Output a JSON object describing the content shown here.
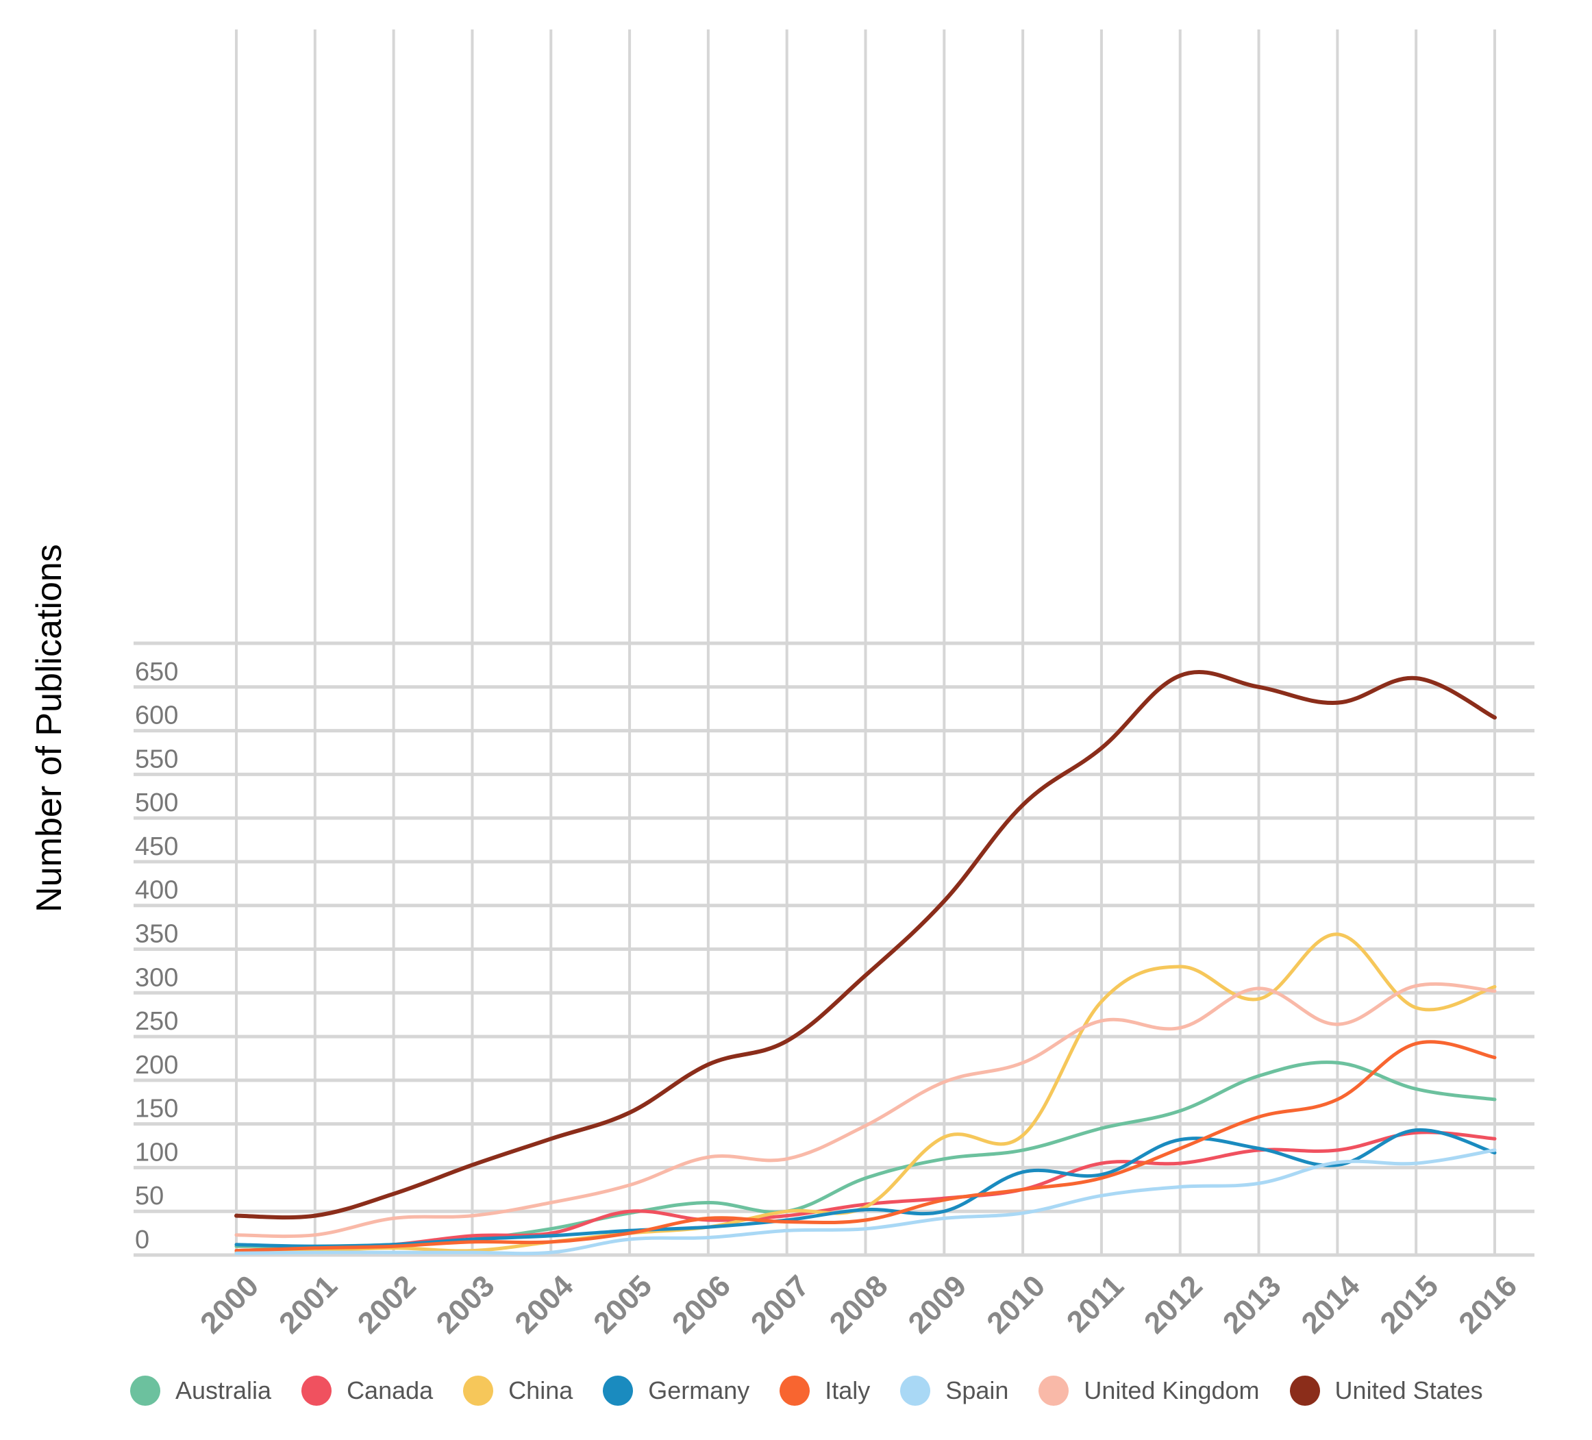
{
  "chart_data": {
    "type": "line",
    "title": "",
    "xlabel": "",
    "ylabel": "Number of Publications",
    "ylim": [
      0,
      700
    ],
    "y_ticks": [
      0,
      50,
      100,
      150,
      200,
      250,
      300,
      350,
      400,
      450,
      500,
      550,
      600,
      650
    ],
    "categories": [
      "2000",
      "2001",
      "2002",
      "2003",
      "2004",
      "2005",
      "2006",
      "2007",
      "2008",
      "2009",
      "2010",
      "2011",
      "2012",
      "2013",
      "2014",
      "2015",
      "2016"
    ],
    "grid": true,
    "legend_position": "bottom",
    "series": [
      {
        "name": "Australia",
        "color": "#6cc19e",
        "values": [
          10,
          10,
          12,
          18,
          30,
          48,
          60,
          50,
          88,
          110,
          120,
          145,
          165,
          205,
          220,
          190,
          178
        ]
      },
      {
        "name": "Canada",
        "color": "#f0515f",
        "values": [
          5,
          8,
          12,
          22,
          25,
          50,
          40,
          45,
          58,
          65,
          75,
          105,
          105,
          120,
          120,
          140,
          133
        ]
      },
      {
        "name": "China",
        "color": "#f6c75a",
        "values": [
          3,
          5,
          8,
          5,
          15,
          25,
          32,
          50,
          55,
          135,
          137,
          290,
          330,
          293,
          367,
          283,
          307
        ]
      },
      {
        "name": "Germany",
        "color": "#1a8bbf",
        "values": [
          12,
          10,
          12,
          18,
          22,
          28,
          32,
          40,
          52,
          50,
          95,
          92,
          132,
          122,
          103,
          143,
          117
        ]
      },
      {
        "name": "Italy",
        "color": "#f86530",
        "values": [
          5,
          8,
          10,
          15,
          15,
          25,
          42,
          38,
          40,
          63,
          75,
          88,
          122,
          158,
          178,
          242,
          226
        ]
      },
      {
        "name": "Spain",
        "color": "#a9d8f5",
        "values": [
          2,
          3,
          3,
          3,
          3,
          18,
          20,
          28,
          30,
          42,
          48,
          68,
          78,
          82,
          106,
          105,
          120
        ]
      },
      {
        "name": "United Kingdom",
        "color": "#f9b9a8",
        "values": [
          23,
          23,
          42,
          45,
          60,
          80,
          112,
          110,
          148,
          198,
          220,
          268,
          260,
          305,
          264,
          308,
          302
        ]
      },
      {
        "name": "United States",
        "color": "#8b2d1a",
        "values": [
          45,
          45,
          70,
          103,
          133,
          163,
          218,
          245,
          320,
          405,
          515,
          580,
          663,
          650,
          632,
          660,
          615
        ]
      }
    ]
  }
}
